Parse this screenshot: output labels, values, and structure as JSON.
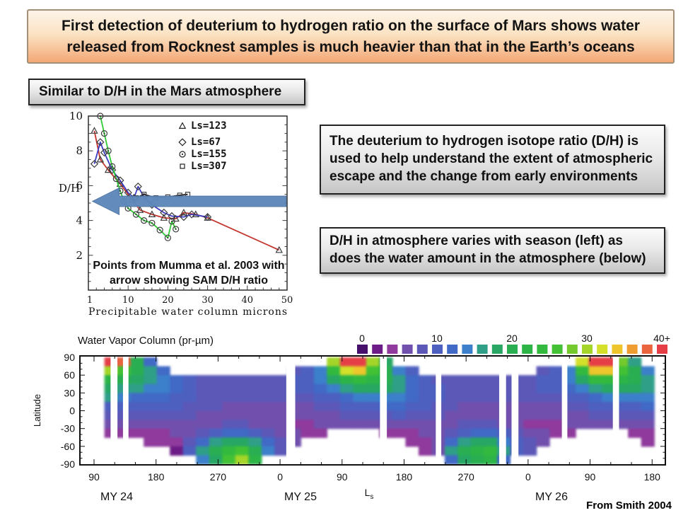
{
  "slide": {
    "banner": "First detection of deuterium to hydrogen ratio on the surface of Mars shows water released from Rocknest samples is much heavier than that in the Earth’s oceans",
    "label_box": "Similar to D/H in the Mars atmosphere",
    "info_box_1": "The deuterium to hydrogen isotope ratio (D/H) is used to help understand the extent of atmospheric escape and the change from early environments",
    "info_box_2": "D/H in atmosphere varies with season (left) as does the water amount in the atmosphere (below)",
    "credit": "From Smith 2004"
  },
  "colors": {
    "banner_top": "#fdf4e8",
    "banner_bottom": "#f3a876",
    "box_gray_top": "#fbfbfb",
    "box_gray_bottom": "#c6c6c6",
    "arrow_blue": "#5d88bb"
  },
  "chart_data": [
    {
      "type": "line",
      "title": "",
      "xlabel": "Precipitable water column  microns",
      "ylabel": "D/H",
      "xlim": [
        0,
        50
      ],
      "ylim": [
        0,
        10
      ],
      "xticks": [
        1,
        10,
        20,
        30,
        40,
        50
      ],
      "yticks": [
        2,
        4,
        6,
        8,
        10
      ],
      "legend_position": "top-right",
      "series": [
        {
          "name": "Ls=123",
          "color": "#c2342c",
          "marker": "triangle",
          "points": [
            [
              1.5,
              9.15
            ],
            [
              3,
              7.5
            ],
            [
              5,
              6.9
            ],
            [
              8,
              6.1
            ],
            [
              11,
              5.2
            ],
            [
              13,
              4.6
            ],
            [
              16,
              4.35
            ],
            [
              19,
              4.15
            ],
            [
              22,
              4.1
            ],
            [
              24,
              4.45
            ],
            [
              27,
              4.35
            ],
            [
              30,
              4.15
            ],
            [
              48,
              2.3
            ]
          ]
        },
        {
          "name": "Ls=67",
          "color": "#3b3bc4",
          "marker": "diamond",
          "points": [
            [
              1.5,
              7.25
            ],
            [
              3,
              8.5
            ],
            [
              4,
              7.9
            ],
            [
              6,
              6.9
            ],
            [
              8,
              6.3
            ],
            [
              10,
              5.6
            ],
            [
              11.5,
              5.3
            ],
            [
              12.5,
              5.95
            ],
            [
              14,
              5.35
            ],
            [
              16,
              4.9
            ],
            [
              19,
              4.45
            ],
            [
              21,
              4.25
            ],
            [
              24,
              4.2
            ],
            [
              26,
              4.35
            ],
            [
              30,
              4.2
            ]
          ]
        },
        {
          "name": "Ls=155",
          "color": "#2fcc35",
          "marker": "circledot",
          "points": [
            [
              3,
              10
            ],
            [
              4,
              9.0
            ],
            [
              5,
              8.0
            ],
            [
              6,
              7.1
            ],
            [
              7,
              6.4
            ],
            [
              8,
              5.7
            ],
            [
              9,
              5.1
            ],
            [
              10,
              4.7
            ],
            [
              12,
              4.35
            ],
            [
              14,
              4.0
            ],
            [
              16,
              3.85
            ],
            [
              18,
              3.45
            ],
            [
              20,
              3.0
            ],
            [
              21,
              3.95
            ],
            [
              22,
              3.5
            ]
          ]
        },
        {
          "name": "Ls=307",
          "color": "#222222",
          "marker": "square",
          "points": [
            [
              12,
              5.3
            ],
            [
              14,
              5.5
            ],
            [
              17,
              5.3
            ],
            [
              20,
              5.35
            ],
            [
              23,
              5.45
            ],
            [
              25,
              5.5
            ]
          ]
        }
      ],
      "arrow": {
        "y": 5.1,
        "x_tip": 1,
        "x_tail": 49.8,
        "color": "#5d88bb",
        "meaning": "SAM D/H ratio"
      },
      "annotation": {
        "lines": [
          "Points from Mumma et al. 2003 with",
          "arrow showing SAM D/H ratio"
        ]
      }
    },
    {
      "type": "heatmap",
      "title": "Water Vapor Column (pr-µm)",
      "xlabel": "Ls",
      "ylabel": "Latitude",
      "x_tick_labels": [
        "90",
        "180",
        "270",
        "0",
        "90",
        "180",
        "270",
        "0",
        "90",
        "180"
      ],
      "year_labels": [
        "MY 24",
        "MY 25",
        "MY 26"
      ],
      "yticks": [
        90,
        60,
        30,
        0,
        -30,
        -60,
        -90
      ],
      "colorbar": {
        "labels": [
          "0",
          "10",
          "20",
          "30",
          "40+"
        ],
        "palette": [
          "#46106b",
          "#6d1b87",
          "#8f3a9c",
          "#7150ad",
          "#5b58b8",
          "#4d60c0",
          "#4169c6",
          "#3c7fca",
          "#2f9f88",
          "#27a763",
          "#2aae52",
          "#2db447",
          "#33ba3e",
          "#43c135",
          "#74ca2d",
          "#a5d528",
          "#d4e029",
          "#eec62c",
          "#ef9d30",
          "#ea653e",
          "#e53e47"
        ],
        "value_per_step": 2
      },
      "L_start": 105,
      "L_step": 19,
      "lat_top": 90,
      "lat_step": 15,
      "grid": [
        [
          40,
          38,
          20,
          12,
          null,
          null,
          null,
          null,
          null,
          null,
          null,
          null,
          null,
          null,
          null,
          null,
          null,
          30,
          42,
          42,
          30,
          18,
          null,
          null,
          null,
          null,
          null,
          null,
          null,
          null,
          null,
          null,
          null,
          null,
          null,
          null,
          32,
          42,
          42,
          28,
          16,
          null
        ],
        [
          30,
          26,
          20,
          16,
          12,
          null,
          null,
          null,
          null,
          null,
          null,
          null,
          null,
          null,
          8,
          10,
          14,
          24,
          32,
          34,
          26,
          20,
          14,
          10,
          null,
          null,
          null,
          null,
          null,
          null,
          null,
          null,
          null,
          8,
          10,
          14,
          24,
          34,
          34,
          26,
          20,
          14
        ],
        [
          22,
          20,
          18,
          16,
          14,
          12,
          10,
          8,
          8,
          8,
          8,
          8,
          8,
          8,
          9,
          10,
          14,
          18,
          22,
          24,
          22,
          20,
          16,
          12,
          10,
          8,
          8,
          7,
          7,
          7,
          7,
          8,
          8,
          9,
          10,
          14,
          18,
          24,
          24,
          22,
          20,
          16
        ],
        [
          18,
          16,
          15,
          14,
          13,
          12,
          10,
          8,
          8,
          8,
          8,
          8,
          8,
          8,
          9,
          10,
          12,
          14,
          16,
          18,
          18,
          17,
          15,
          12,
          10,
          9,
          8,
          7,
          7,
          7,
          7,
          8,
          8,
          9,
          10,
          12,
          13,
          16,
          17,
          18,
          17,
          15
        ],
        [
          15,
          13,
          12,
          12,
          11,
          10,
          9,
          8,
          7,
          7,
          7,
          7,
          7,
          8,
          8,
          8,
          10,
          10,
          12,
          13,
          14,
          14,
          13,
          11,
          10,
          9,
          8,
          7,
          7,
          7,
          7,
          7,
          8,
          8,
          8,
          9,
          10,
          12,
          13,
          14,
          14,
          13
        ],
        [
          10,
          10,
          10,
          10,
          9,
          9,
          8,
          7,
          7,
          6,
          6,
          6,
          6,
          6,
          6,
          6,
          8,
          8,
          9,
          10,
          10,
          11,
          11,
          10,
          9,
          8,
          7,
          6,
          6,
          6,
          6,
          6,
          6,
          6,
          6,
          7,
          8,
          9,
          9,
          10,
          10,
          11
        ],
        [
          8,
          8,
          8,
          8,
          8,
          8,
          7,
          6,
          6,
          6,
          6,
          6,
          5,
          5,
          5,
          5,
          6,
          6,
          7,
          7,
          8,
          8,
          9,
          8,
          8,
          7,
          6,
          6,
          6,
          6,
          5,
          5,
          5,
          5,
          5,
          6,
          6,
          7,
          7,
          7,
          8,
          8
        ],
        [
          6,
          6,
          6,
          6,
          6,
          6,
          6,
          6,
          6,
          7,
          7,
          6,
          5,
          5,
          4,
          4,
          5,
          5,
          5,
          5,
          5,
          5,
          6,
          6,
          6,
          6,
          6,
          7,
          7,
          7,
          6,
          5,
          4,
          4,
          4,
          5,
          5,
          5,
          5,
          5,
          5,
          6
        ],
        [
          4,
          4,
          4,
          4,
          4,
          5,
          6,
          8,
          10,
          12,
          12,
          10,
          8,
          6,
          5,
          4,
          4,
          null,
          null,
          null,
          null,
          4,
          4,
          4,
          5,
          6,
          8,
          10,
          12,
          12,
          10,
          8,
          6,
          5,
          4,
          4,
          null,
          null,
          null,
          null,
          4,
          4
        ],
        [
          null,
          null,
          null,
          3,
          3,
          3,
          8,
          12,
          16,
          18,
          18,
          16,
          12,
          8,
          6,
          null,
          null,
          null,
          null,
          null,
          null,
          null,
          null,
          3,
          4,
          6,
          12,
          16,
          18,
          18,
          14,
          10,
          8,
          6,
          null,
          null,
          null,
          null,
          null,
          null,
          null,
          3
        ],
        [
          null,
          null,
          null,
          null,
          null,
          2,
          10,
          16,
          20,
          24,
          26,
          20,
          14,
          8,
          null,
          null,
          null,
          null,
          null,
          null,
          null,
          null,
          null,
          null,
          3,
          6,
          16,
          20,
          22,
          24,
          16,
          10,
          8,
          null,
          null,
          null,
          null,
          null,
          null,
          null,
          null,
          null
        ],
        [
          null,
          null,
          null,
          null,
          null,
          null,
          null,
          14,
          18,
          26,
          30,
          22,
          null,
          null,
          null,
          null,
          null,
          null,
          null,
          null,
          null,
          null,
          null,
          null,
          null,
          null,
          12,
          18,
          20,
          22,
          12,
          null,
          null,
          null,
          null,
          null,
          null,
          null,
          null,
          null,
          null,
          null
        ]
      ],
      "gaps": [
        [
          114,
          124
        ],
        [
          132,
          140
        ],
        [
          369,
          382
        ],
        [
          505,
          515
        ],
        [
          586,
          594
        ],
        [
          678,
          688
        ],
        [
          696,
          706
        ],
        [
          769,
          777
        ],
        [
          843,
          852
        ]
      ]
    }
  ]
}
